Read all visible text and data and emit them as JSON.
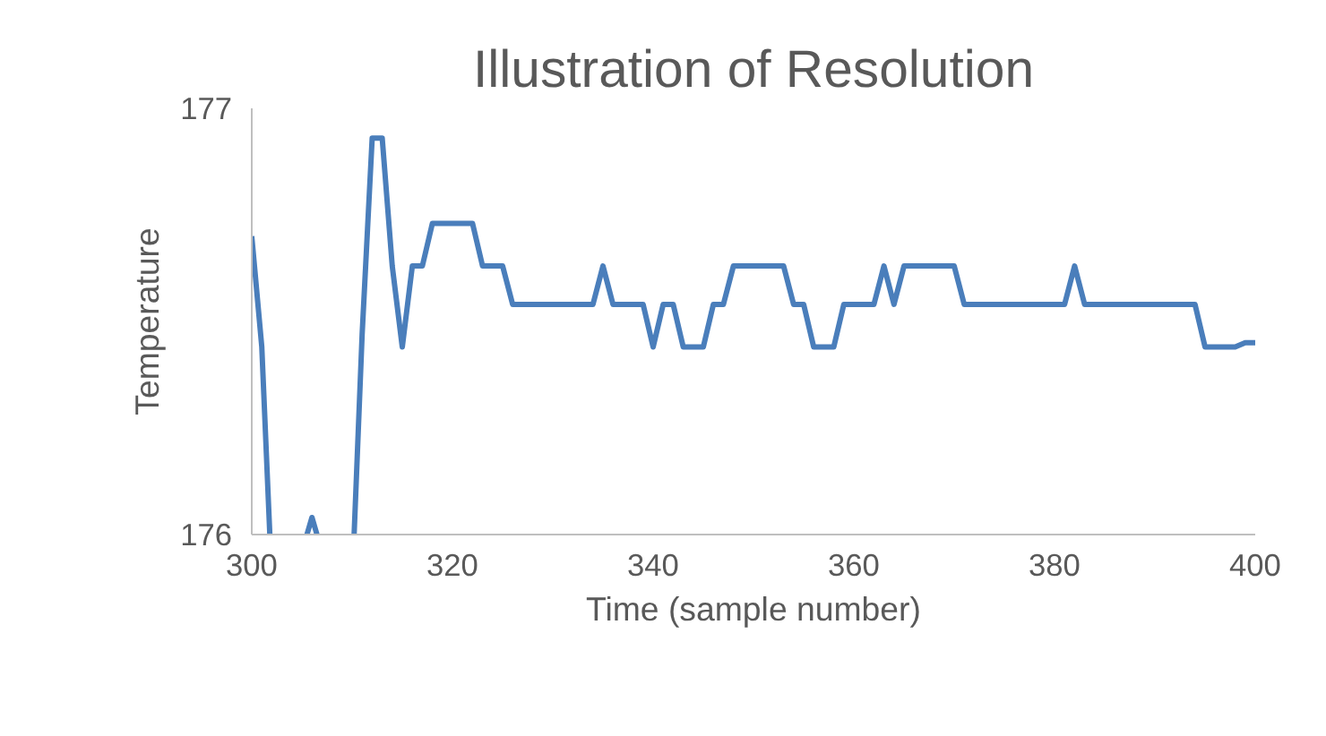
{
  "chart_data": {
    "type": "line",
    "title": "Illustration of Resolution",
    "xlabel": "Time (sample number)",
    "ylabel": "Temperature",
    "series": [
      {
        "color": "#4a7ebb",
        "x": [
          300,
          301,
          301.8,
          301.9,
          305.5,
          306,
          306.5,
          306.6,
          310.1,
          310.2,
          311,
          312,
          313,
          314,
          315,
          316,
          317,
          318,
          319,
          320,
          321,
          322,
          323,
          324,
          325,
          326,
          327,
          328,
          329,
          330,
          331,
          332,
          333,
          334,
          335,
          336,
          337,
          338,
          339,
          340,
          341,
          342,
          343,
          344,
          345,
          346,
          347,
          348,
          349,
          350,
          351,
          352,
          353,
          354,
          355,
          356,
          357,
          358,
          359,
          360,
          361,
          362,
          363,
          364,
          365,
          366,
          367,
          368,
          369,
          370,
          371,
          372,
          373,
          374,
          375,
          376,
          377,
          378,
          379,
          380,
          381,
          382,
          383,
          384,
          385,
          386,
          387,
          388,
          389,
          390,
          391,
          392,
          393,
          394,
          395,
          396,
          397,
          398,
          399,
          400
        ],
        "values": [
          176.7,
          176.44,
          176,
          null,
          176,
          176.04,
          176,
          null,
          176,
          176,
          176.47,
          176.93,
          176.93,
          176.63,
          176.44,
          176.63,
          176.63,
          176.73,
          176.73,
          176.73,
          176.73,
          176.73,
          176.63,
          176.63,
          176.63,
          176.54,
          176.54,
          176.54,
          176.54,
          176.54,
          176.54,
          176.54,
          176.54,
          176.54,
          176.63,
          176.54,
          176.54,
          176.54,
          176.54,
          176.44,
          176.54,
          176.54,
          176.44,
          176.44,
          176.44,
          176.54,
          176.54,
          176.63,
          176.63,
          176.63,
          176.63,
          176.63,
          176.63,
          176.54,
          176.54,
          176.44,
          176.44,
          176.44,
          176.54,
          176.54,
          176.54,
          176.54,
          176.63,
          176.54,
          176.63,
          176.63,
          176.63,
          176.63,
          176.63,
          176.63,
          176.54,
          176.54,
          176.54,
          176.54,
          176.54,
          176.54,
          176.54,
          176.54,
          176.54,
          176.54,
          176.54,
          176.63,
          176.54,
          176.54,
          176.54,
          176.54,
          176.54,
          176.54,
          176.54,
          176.54,
          176.54,
          176.54,
          176.54,
          176.54,
          176.44,
          176.44,
          176.44,
          176.44,
          176.45,
          176.45
        ]
      }
    ],
    "xlim": [
      300,
      400
    ],
    "xticks": [
      300,
      320,
      340,
      360,
      380,
      400
    ],
    "ylim": [
      176,
      177
    ],
    "yticks": [
      176,
      177
    ],
    "grid": false
  }
}
